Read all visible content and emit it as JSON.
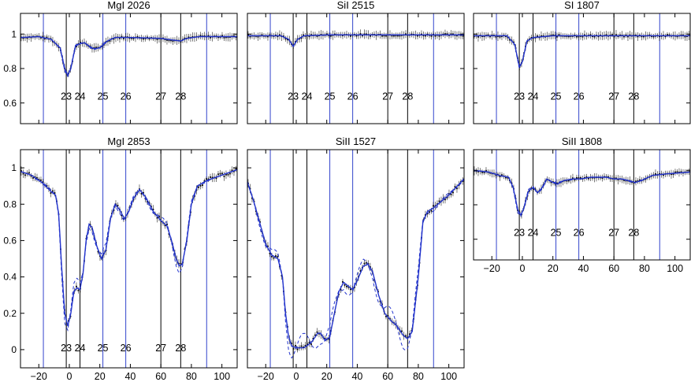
{
  "colors": {
    "model": "#2233cc",
    "data": "#000000",
    "comp_line_blue": "#3344cc",
    "comp_line_black": "#000000"
  },
  "x_ticks": [
    -20,
    0,
    20,
    40,
    60,
    80,
    100
  ],
  "x_tick_labels": [
    "−20",
    "0",
    "20",
    "40",
    "60",
    "80",
    "100"
  ],
  "component_labels": [
    "23",
    "24",
    "25",
    "26",
    "27",
    "28"
  ],
  "chart_data": [
    {
      "type": "line",
      "title": "MgI 2026",
      "xlim": [
        -32,
        110
      ],
      "ylim": [
        0.48,
        1.12
      ],
      "yticks": [
        0.6,
        0.8,
        1
      ],
      "ytick_labels": [
        "0.6",
        "0.8",
        "1"
      ],
      "show_x_labels": false,
      "comp_lines": [
        {
          "v": -17,
          "c": "blue"
        },
        {
          "v": -2,
          "c": "black"
        },
        {
          "v": 7,
          "c": "black"
        },
        {
          "v": 22,
          "c": "blue"
        },
        {
          "v": 37,
          "c": "blue"
        },
        {
          "v": 60,
          "c": "black"
        },
        {
          "v": 73,
          "c": "black"
        },
        {
          "v": 90,
          "c": "blue"
        }
      ],
      "comp_label_x": [
        -2,
        7,
        22,
        37,
        60,
        73
      ],
      "comp_label_y": 0.62,
      "series": [
        {
          "points": [
            [
              -32,
              0.98
            ],
            [
              -20,
              0.985
            ],
            [
              -12,
              0.97
            ],
            [
              -6,
              0.92
            ],
            [
              -3,
              0.8
            ],
            [
              -1,
              0.76
            ],
            [
              1,
              0.8
            ],
            [
              4,
              0.93
            ],
            [
              7,
              0.945
            ],
            [
              10,
              0.95
            ],
            [
              13,
              0.93
            ],
            [
              16,
              0.915
            ],
            [
              20,
              0.92
            ],
            [
              25,
              0.96
            ],
            [
              30,
              0.98
            ],
            [
              40,
              0.98
            ],
            [
              60,
              0.975
            ],
            [
              68,
              0.965
            ],
            [
              73,
              0.96
            ],
            [
              77,
              0.975
            ],
            [
              85,
              0.985
            ],
            [
              110,
              0.985
            ]
          ]
        }
      ]
    },
    {
      "type": "line",
      "title": "SiI 2515",
      "xlim": [
        -32,
        110
      ],
      "ylim": [
        0.48,
        1.12
      ],
      "yticks": [
        0.6,
        0.8,
        1
      ],
      "ytick_labels": [],
      "show_x_labels": false,
      "comp_lines": [
        {
          "v": -17,
          "c": "blue"
        },
        {
          "v": -2,
          "c": "black"
        },
        {
          "v": 7,
          "c": "black"
        },
        {
          "v": 22,
          "c": "blue"
        },
        {
          "v": 37,
          "c": "blue"
        },
        {
          "v": 60,
          "c": "black"
        },
        {
          "v": 73,
          "c": "black"
        },
        {
          "v": 90,
          "c": "blue"
        }
      ],
      "comp_label_x": [
        -2,
        7,
        22,
        37,
        60,
        73
      ],
      "comp_label_y": 0.62,
      "series": [
        {
          "points": [
            [
              -32,
              0.99
            ],
            [
              -10,
              0.99
            ],
            [
              -5,
              0.97
            ],
            [
              -2,
              0.93
            ],
            [
              1,
              0.97
            ],
            [
              5,
              0.99
            ],
            [
              20,
              0.995
            ],
            [
              110,
              0.995
            ]
          ]
        }
      ]
    },
    {
      "type": "line",
      "title": "SI 1807",
      "xlim": [
        -32,
        110
      ],
      "ylim": [
        0.48,
        1.12
      ],
      "yticks": [
        0.6,
        0.8,
        1
      ],
      "ytick_labels": [],
      "show_x_labels": false,
      "comp_lines": [
        {
          "v": -17,
          "c": "blue"
        },
        {
          "v": -2,
          "c": "black"
        },
        {
          "v": 7,
          "c": "black"
        },
        {
          "v": 22,
          "c": "blue"
        },
        {
          "v": 37,
          "c": "blue"
        },
        {
          "v": 60,
          "c": "black"
        },
        {
          "v": 73,
          "c": "black"
        },
        {
          "v": 90,
          "c": "blue"
        }
      ],
      "comp_label_x": [
        -2,
        7,
        22,
        37,
        60,
        73
      ],
      "comp_label_y": 0.62,
      "series": [
        {
          "points": [
            [
              -32,
              0.99
            ],
            [
              -10,
              0.99
            ],
            [
              -5,
              0.94
            ],
            [
              -2,
              0.81
            ],
            [
              0,
              0.84
            ],
            [
              3,
              0.96
            ],
            [
              7,
              0.98
            ],
            [
              20,
              0.99
            ],
            [
              110,
              0.99
            ]
          ]
        }
      ]
    },
    {
      "type": "line",
      "title": "MgI 2853",
      "xlim": [
        -32,
        110
      ],
      "ylim": [
        -0.1,
        1.1
      ],
      "yticks": [
        0,
        0.2,
        0.4,
        0.6,
        0.8,
        1
      ],
      "ytick_labels": [
        "0",
        "0.2",
        "0.4",
        "0.6",
        "0.8",
        "1"
      ],
      "show_x_labels": true,
      "comp_lines": [
        {
          "v": -17,
          "c": "blue"
        },
        {
          "v": -2,
          "c": "black"
        },
        {
          "v": 7,
          "c": "black"
        },
        {
          "v": 22,
          "c": "blue"
        },
        {
          "v": 37,
          "c": "blue"
        },
        {
          "v": 60,
          "c": "black"
        },
        {
          "v": 73,
          "c": "black"
        },
        {
          "v": 90,
          "c": "blue"
        }
      ],
      "comp_label_x": [
        -2,
        7,
        22,
        37,
        60,
        73
      ],
      "comp_label_y": -0.01,
      "series": [
        {
          "points": [
            [
              -32,
              0.98
            ],
            [
              -25,
              0.96
            ],
            [
              -18,
              0.92
            ],
            [
              -12,
              0.87
            ],
            [
              -9,
              0.85
            ],
            [
              -7,
              0.75
            ],
            [
              -5,
              0.45
            ],
            [
              -3,
              0.2
            ],
            [
              -1,
              0.13
            ],
            [
              1,
              0.2
            ],
            [
              3,
              0.32
            ],
            [
              5,
              0.34
            ],
            [
              7,
              0.33
            ],
            [
              9,
              0.42
            ],
            [
              11,
              0.6
            ],
            [
              13,
              0.69
            ],
            [
              15,
              0.67
            ],
            [
              18,
              0.57
            ],
            [
              21,
              0.5
            ],
            [
              24,
              0.55
            ],
            [
              27,
              0.72
            ],
            [
              30,
              0.8
            ],
            [
              33,
              0.77
            ],
            [
              36,
              0.72
            ],
            [
              39,
              0.76
            ],
            [
              42,
              0.83
            ],
            [
              46,
              0.88
            ],
            [
              50,
              0.84
            ],
            [
              55,
              0.76
            ],
            [
              60,
              0.71
            ],
            [
              64,
              0.68
            ],
            [
              67,
              0.6
            ],
            [
              70,
              0.5
            ],
            [
              72,
              0.46
            ],
            [
              74,
              0.47
            ],
            [
              77,
              0.6
            ],
            [
              80,
              0.8
            ],
            [
              84,
              0.9
            ],
            [
              90,
              0.93
            ],
            [
              100,
              0.96
            ],
            [
              110,
              0.99
            ]
          ]
        }
      ]
    },
    {
      "type": "line",
      "title": "SiII 1527",
      "xlim": [
        -32,
        110
      ],
      "ylim": [
        -0.1,
        1.1
      ],
      "yticks": [
        0,
        0.2,
        0.4,
        0.6,
        0.8,
        1
      ],
      "ytick_labels": [],
      "show_x_labels": true,
      "comp_lines": [
        {
          "v": -17,
          "c": "blue"
        },
        {
          "v": -2,
          "c": "black"
        },
        {
          "v": 7,
          "c": "black"
        },
        {
          "v": 22,
          "c": "blue"
        },
        {
          "v": 37,
          "c": "blue"
        },
        {
          "v": 60,
          "c": "black"
        },
        {
          "v": 73,
          "c": "black"
        },
        {
          "v": 90,
          "c": "blue"
        }
      ],
      "comp_label_x": [],
      "comp_label_y": -0.01,
      "series": [
        {
          "points": [
            [
              -32,
              0.92
            ],
            [
              -28,
              0.82
            ],
            [
              -24,
              0.7
            ],
            [
              -20,
              0.58
            ],
            [
              -16,
              0.52
            ],
            [
              -12,
              0.5
            ],
            [
              -9,
              0.4
            ],
            [
              -7,
              0.2
            ],
            [
              -5,
              0.07
            ],
            [
              -3,
              0.02
            ],
            [
              0,
              0.01
            ],
            [
              5,
              0.01
            ],
            [
              10,
              0.04
            ],
            [
              14,
              0.09
            ],
            [
              16,
              0.09
            ],
            [
              19,
              0.05
            ],
            [
              22,
              0.07
            ],
            [
              25,
              0.2
            ],
            [
              28,
              0.32
            ],
            [
              31,
              0.37
            ],
            [
              34,
              0.35
            ],
            [
              37,
              0.33
            ],
            [
              40,
              0.38
            ],
            [
              44,
              0.46
            ],
            [
              47,
              0.47
            ],
            [
              50,
              0.43
            ],
            [
              54,
              0.3
            ],
            [
              58,
              0.2
            ],
            [
              62,
              0.16
            ],
            [
              66,
              0.13
            ],
            [
              70,
              0.08
            ],
            [
              73,
              0.06
            ],
            [
              76,
              0.1
            ],
            [
              80,
              0.4
            ],
            [
              83,
              0.7
            ],
            [
              86,
              0.76
            ],
            [
              90,
              0.78
            ],
            [
              100,
              0.85
            ],
            [
              110,
              0.94
            ]
          ]
        }
      ]
    },
    {
      "type": "line",
      "title": "SiII 1808",
      "xlim": [
        -32,
        110
      ],
      "ylim": [
        0.48,
        1.12
      ],
      "yticks": [
        0.6,
        0.8,
        1
      ],
      "ytick_labels": [],
      "show_x_labels": true,
      "comp_lines": [
        {
          "v": -17,
          "c": "blue"
        },
        {
          "v": -2,
          "c": "black"
        },
        {
          "v": 7,
          "c": "black"
        },
        {
          "v": 22,
          "c": "blue"
        },
        {
          "v": 37,
          "c": "blue"
        },
        {
          "v": 60,
          "c": "black"
        },
        {
          "v": 73,
          "c": "black"
        },
        {
          "v": 90,
          "c": "blue"
        }
      ],
      "comp_label_x": [
        -2,
        7,
        22,
        37,
        60,
        73
      ],
      "comp_label_y": 0.62,
      "series": [
        {
          "points": [
            [
              -32,
              1.0
            ],
            [
              -22,
              0.99
            ],
            [
              -15,
              0.97
            ],
            [
              -9,
              0.96
            ],
            [
              -6,
              0.9
            ],
            [
              -3,
              0.77
            ],
            [
              -1,
              0.74
            ],
            [
              1,
              0.78
            ],
            [
              4,
              0.88
            ],
            [
              7,
              0.9
            ],
            [
              10,
              0.87
            ],
            [
              13,
              0.9
            ],
            [
              16,
              0.95
            ],
            [
              20,
              0.93
            ],
            [
              23,
              0.92
            ],
            [
              27,
              0.94
            ],
            [
              33,
              0.95
            ],
            [
              38,
              0.95
            ],
            [
              45,
              0.96
            ],
            [
              55,
              0.96
            ],
            [
              60,
              0.95
            ],
            [
              65,
              0.95
            ],
            [
              70,
              0.94
            ],
            [
              74,
              0.93
            ],
            [
              78,
              0.94
            ],
            [
              85,
              0.97
            ],
            [
              95,
              0.98
            ],
            [
              110,
              0.99
            ]
          ]
        }
      ]
    }
  ]
}
